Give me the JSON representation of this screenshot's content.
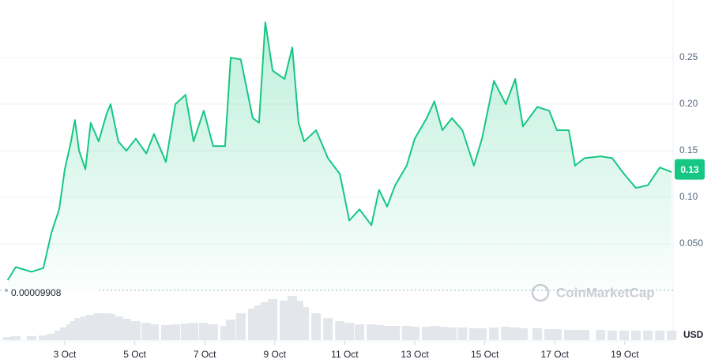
{
  "chart_data": {
    "type": "line",
    "x": [
      1.37,
      1.6,
      2.05,
      2.39,
      2.62,
      2.84,
      3.0,
      3.18,
      3.29,
      3.41,
      3.59,
      3.74,
      3.97,
      4.2,
      4.31,
      4.53,
      4.76,
      5.03,
      5.33,
      5.55,
      5.89,
      6.16,
      6.45,
      6.68,
      6.97,
      7.24,
      7.58,
      7.74,
      8.03,
      8.37,
      8.55,
      8.73,
      8.94,
      9.28,
      9.5,
      9.68,
      9.84,
      10.18,
      10.52,
      10.86,
      11.13,
      11.42,
      11.76,
      11.98,
      12.21,
      12.44,
      12.77,
      13.0,
      13.34,
      13.56,
      13.79,
      14.06,
      14.36,
      14.69,
      14.92,
      15.26,
      15.6,
      15.87,
      16.09,
      16.5,
      16.84,
      17.06,
      17.4,
      17.58,
      17.85,
      18.31,
      18.64,
      18.98,
      19.32,
      19.66,
      20.0,
      20.34
    ],
    "series": [
      {
        "color": "#16c784",
        "values": [
          0.011,
          0.025,
          0.02,
          0.024,
          0.062,
          0.087,
          0.13,
          0.16,
          0.183,
          0.15,
          0.13,
          0.18,
          0.16,
          0.19,
          0.2,
          0.16,
          0.15,
          0.163,
          0.147,
          0.168,
          0.138,
          0.2,
          0.21,
          0.16,
          0.193,
          0.155,
          0.155,
          0.25,
          0.248,
          0.185,
          0.18,
          0.288,
          0.236,
          0.227,
          0.261,
          0.18,
          0.16,
          0.172,
          0.142,
          0.125,
          0.075,
          0.087,
          0.07,
          0.108,
          0.09,
          0.113,
          0.134,
          0.163,
          0.185,
          0.203,
          0.172,
          0.185,
          0.172,
          0.134,
          0.163,
          0.225,
          0.2,
          0.227,
          0.176,
          0.197,
          0.193,
          0.172,
          0.172,
          0.134,
          0.142,
          0.144,
          0.142,
          0.125,
          0.11,
          0.113,
          0.132,
          0.127
        ]
      }
    ],
    "volume": {
      "color": "#e3e6ea",
      "values": [
        4,
        5,
        5,
        6,
        8,
        12,
        16,
        20,
        24,
        28,
        30,
        32,
        34,
        34,
        33,
        30,
        27,
        24,
        22,
        20,
        19,
        20,
        21,
        22,
        22,
        20,
        18,
        26,
        34,
        40,
        44,
        48,
        52,
        50,
        56,
        50,
        42,
        34,
        28,
        24,
        22,
        20,
        20,
        19,
        18,
        18,
        18,
        17,
        17,
        18,
        17,
        16,
        16,
        15,
        15,
        16,
        17,
        16,
        15,
        15,
        14,
        14,
        13,
        13,
        13,
        13,
        12,
        12,
        12,
        12,
        12,
        12
      ]
    },
    "xlim": [
      1.15,
      20.38
    ],
    "xticks": [
      {
        "value": 3,
        "label": "3 Oct"
      },
      {
        "value": 5,
        "label": "5 Oct"
      },
      {
        "value": 7,
        "label": "7 Oct"
      },
      {
        "value": 9,
        "label": "9 Oct"
      },
      {
        "value": 11,
        "label": "11 Oct"
      },
      {
        "value": 13,
        "label": "13 Oct"
      },
      {
        "value": 15,
        "label": "15 Oct"
      },
      {
        "value": 17,
        "label": "17 Oct"
      },
      {
        "value": 19,
        "label": "19 Oct"
      }
    ],
    "ylim": [
      0,
      0.3
    ],
    "yticks": [
      0.25,
      {
        "value": 0.2,
        "label": "0.20"
      },
      0.15,
      {
        "value": 0.1,
        "label": "0.10"
      },
      {
        "value": 0.05,
        "label": "0.050"
      }
    ],
    "grid": true,
    "baseline": 9.908e-05,
    "current_price": 0.13,
    "watermark": "CoinMarketCap",
    "currency": "USD"
  }
}
